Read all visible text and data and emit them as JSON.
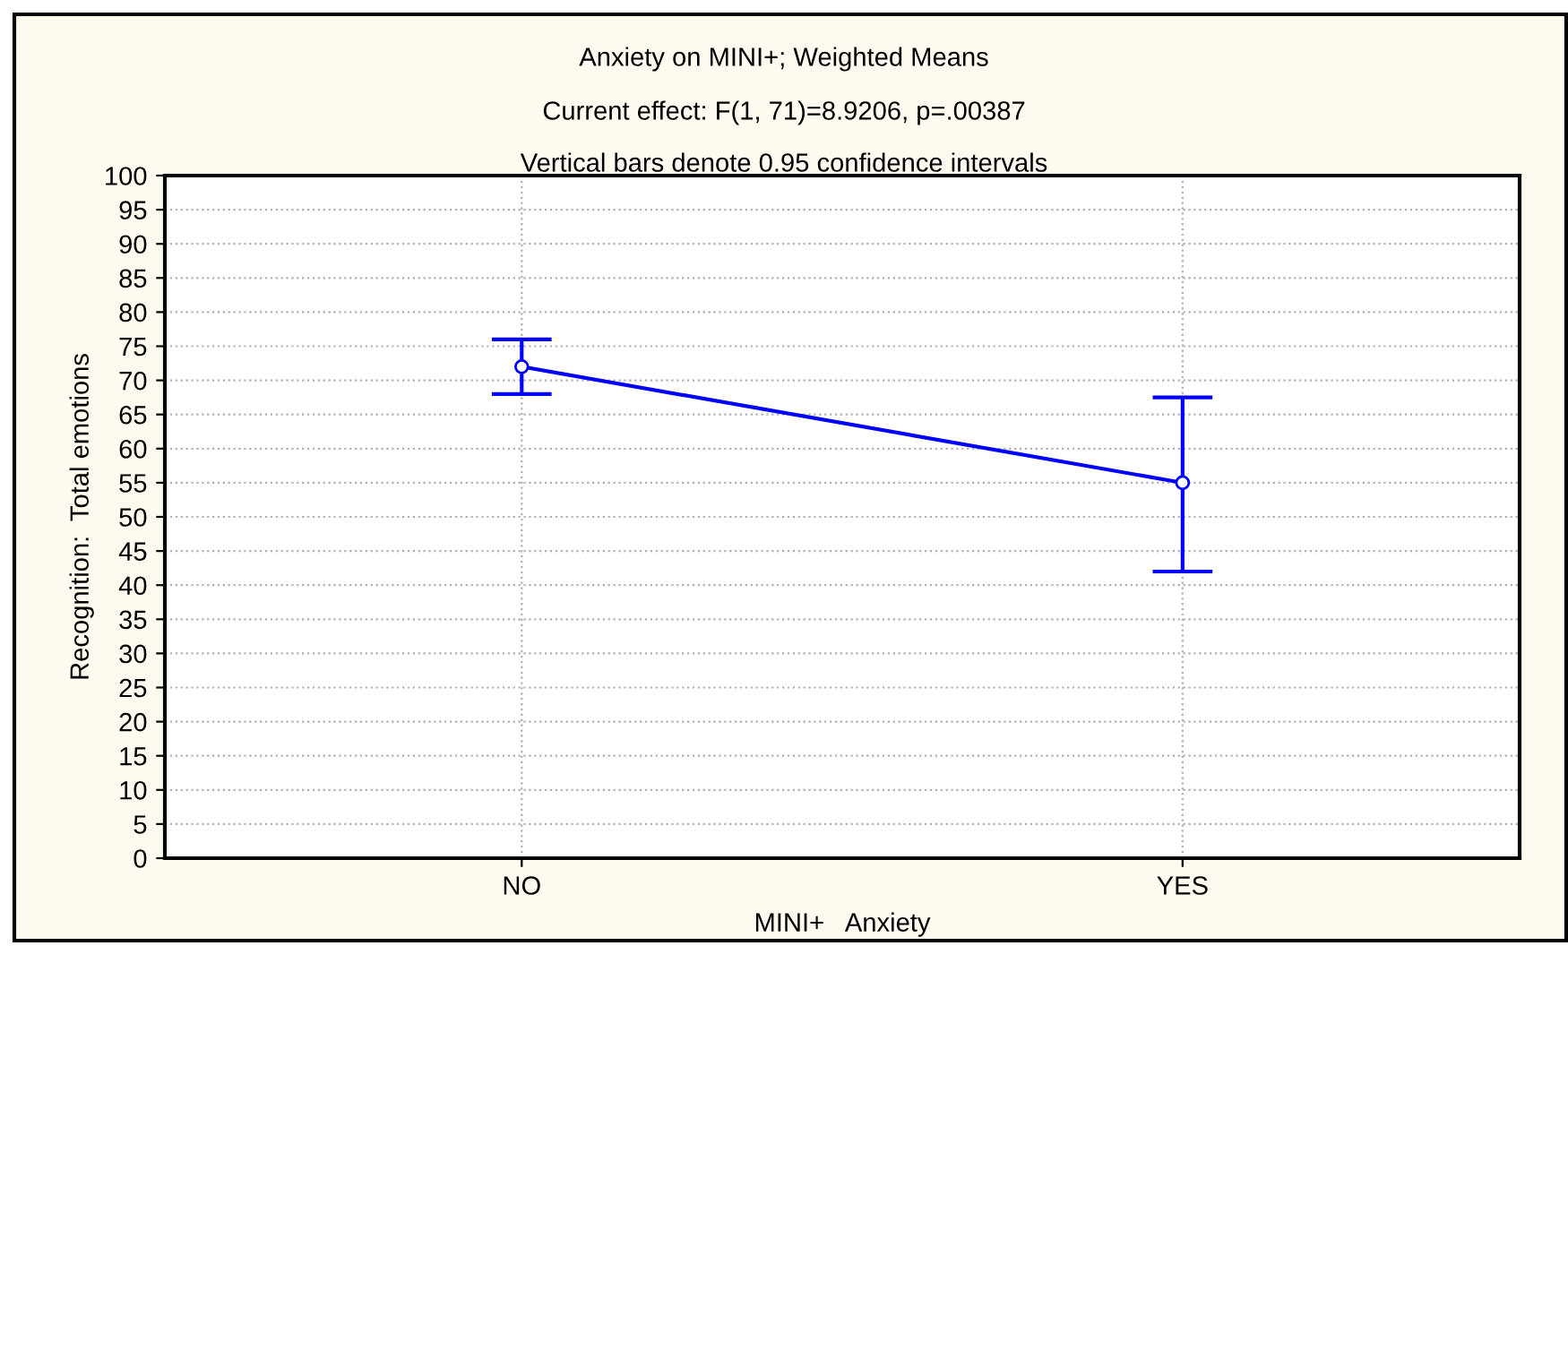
{
  "chart_data": {
    "type": "line",
    "title": "Anxiety on MINI+; Weighted Means",
    "subtitle": "Current effect: F(1, 71)=8.9206, p=.00387",
    "annotations": [
      "Vertical bars denote 0.95 confidence intervals"
    ],
    "xlabel": "MINI+   Anxiety",
    "ylabel": "Recognition:  Total emotions",
    "categories": [
      "NO",
      "YES"
    ],
    "series": [
      {
        "color": "#0000ff",
        "values": [
          72,
          55
        ],
        "errors": [
          [
            68,
            76
          ],
          [
            42,
            67.5
          ]
        ]
      }
    ],
    "ylim": [
      0,
      100
    ],
    "yticks": [
      0,
      5,
      10,
      15,
      20,
      25,
      30,
      35,
      40,
      45,
      50,
      55,
      60,
      65,
      70,
      75,
      80,
      85,
      90,
      95,
      100
    ],
    "grid": true,
    "marker": "circle",
    "line_style": "solid"
  }
}
